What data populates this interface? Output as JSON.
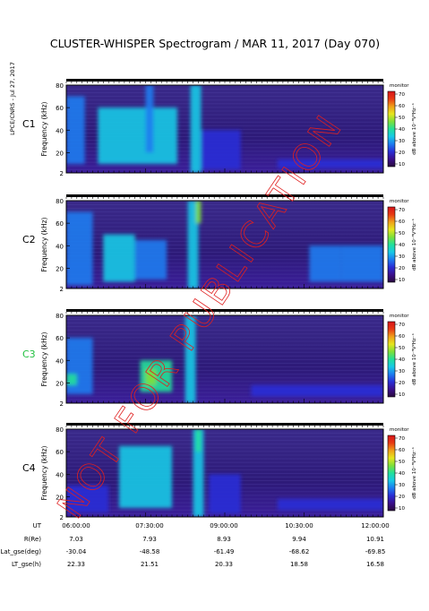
{
  "title": "CLUSTER-WHISPER Spectrogram / MAR 11, 2017 (Day 070)",
  "stamp": "LPCE/CNRS - Jul 27, 2017",
  "watermark": "NOT FOR PUBLICATION",
  "colorbar": {
    "ticks": [
      "70",
      "60",
      "50",
      "40",
      "30",
      "20",
      "10"
    ],
    "label": "dB above 10⁻⁸V²Hz⁻¹",
    "top_label": "monitor",
    "colors": [
      "#2a0a3e",
      "#3b0f8c",
      "#2a2ed6",
      "#1d7cf0",
      "#18c9e6",
      "#22e09a",
      "#7ee03a",
      "#e6e61e",
      "#f0a01a",
      "#e83a14",
      "#d8141a"
    ]
  },
  "panels": [
    {
      "label": "C1",
      "label_color": "#000000",
      "ylabel": "Frequency (kHz)"
    },
    {
      "label": "C2",
      "label_color": "#000000",
      "ylabel": "Frequency (kHz)"
    },
    {
      "label": "C3",
      "label_color": "#22c040",
      "ylabel": "Frequency (kHz)"
    },
    {
      "label": "C4",
      "label_color": "#000000",
      "ylabel": "Frequency (kHz)"
    }
  ],
  "ephemeris": {
    "rows": [
      {
        "label": "UT",
        "values": [
          "06:00:00",
          "07:30:00",
          "09:00:00",
          "10:30:00",
          "12:00:00"
        ]
      },
      {
        "label": "R(Re)",
        "values": [
          "7.03",
          "7.93",
          "8.93",
          "9.94",
          "10.91"
        ]
      },
      {
        "label": "Lat_gse(deg)",
        "values": [
          "-30.04",
          "-48.58",
          "-61.49",
          "-68.62",
          "-69.85"
        ]
      },
      {
        "label": "LT_gse(h)",
        "values": [
          "22.33",
          "21.51",
          "20.33",
          "18.58",
          "16.58"
        ]
      }
    ]
  },
  "chart_data": {
    "type": "heatmap",
    "title": "CLUSTER-WHISPER Spectrogram / MAR 11, 2017 (Day 070)",
    "xlabel": "UT",
    "ylabel": "Frequency (kHz)",
    "x_ticks": [
      "06:00:00",
      "07:30:00",
      "09:00:00",
      "10:30:00",
      "12:00:00"
    ],
    "x_range_hours": [
      6.0,
      12.0
    ],
    "ylim": [
      2,
      80
    ],
    "y_ticks": [
      2,
      20,
      40,
      60,
      80
    ],
    "colorbar_range_db": [
      10,
      70
    ],
    "series": [
      {
        "name": "C1",
        "features": [
          {
            "t": [
              6.0,
              6.35
            ],
            "f": [
              10,
              70
            ],
            "db": 30
          },
          {
            "t": [
              6.6,
              8.1
            ],
            "f": [
              10,
              60
            ],
            "db": 32
          },
          {
            "t": [
              7.5,
              7.65
            ],
            "f": [
              20,
              80
            ],
            "db": 30
          },
          {
            "t": [
              8.35,
              8.55
            ],
            "f": [
              2,
              80
            ],
            "db": 34
          },
          {
            "t": [
              8.55,
              9.3
            ],
            "f": [
              5,
              40
            ],
            "db": 20
          },
          {
            "t": [
              10.0,
              12.0
            ],
            "f": [
              6,
              14
            ],
            "db": 20
          }
        ]
      },
      {
        "name": "C2",
        "features": [
          {
            "t": [
              6.0,
              6.5
            ],
            "f": [
              5,
              70
            ],
            "db": 25
          },
          {
            "t": [
              6.7,
              7.3
            ],
            "f": [
              8,
              50
            ],
            "db": 33
          },
          {
            "t": [
              7.3,
              7.9
            ],
            "f": [
              10,
              45
            ],
            "db": 30
          },
          {
            "t": [
              8.3,
              8.5
            ],
            "f": [
              2,
              80
            ],
            "db": 36
          },
          {
            "t": [
              8.45,
              8.55
            ],
            "f": [
              60,
              80
            ],
            "db": 45
          },
          {
            "t": [
              10.6,
              11.2
            ],
            "f": [
              8,
              40
            ],
            "db": 25
          },
          {
            "t": [
              11.2,
              12.0
            ],
            "f": [
              8,
              40
            ],
            "db": 30
          }
        ]
      },
      {
        "name": "C3",
        "features": [
          {
            "t": [
              6.0,
              6.5
            ],
            "f": [
              10,
              60
            ],
            "db": 28
          },
          {
            "t": [
              6.0,
              6.2
            ],
            "f": [
              18,
              28
            ],
            "db": 42
          },
          {
            "t": [
              7.4,
              8.0
            ],
            "f": [
              12,
              40
            ],
            "db": 38
          },
          {
            "t": [
              7.5,
              7.7
            ],
            "f": [
              18,
              32
            ],
            "db": 45
          },
          {
            "t": [
              8.25,
              8.45
            ],
            "f": [
              2,
              80
            ],
            "db": 34
          },
          {
            "t": [
              9.5,
              12.0
            ],
            "f": [
              8,
              18
            ],
            "db": 22
          }
        ]
      },
      {
        "name": "C4",
        "features": [
          {
            "t": [
              6.0,
              6.8
            ],
            "f": [
              6,
              30
            ],
            "db": 22
          },
          {
            "t": [
              7.0,
              8.0
            ],
            "f": [
              10,
              65
            ],
            "db": 33
          },
          {
            "t": [
              8.4,
              8.6
            ],
            "f": [
              2,
              80
            ],
            "db": 36
          },
          {
            "t": [
              8.45,
              8.55
            ],
            "f": [
              60,
              80
            ],
            "db": 42
          },
          {
            "t": [
              8.7,
              9.3
            ],
            "f": [
              5,
              40
            ],
            "db": 20
          },
          {
            "t": [
              10.0,
              12.0
            ],
            "f": [
              8,
              18
            ],
            "db": 22
          }
        ]
      }
    ]
  }
}
